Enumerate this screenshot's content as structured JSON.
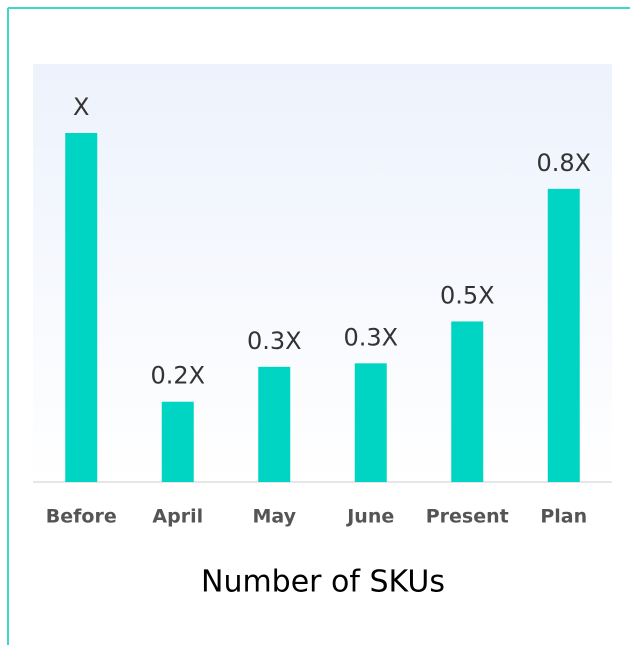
{
  "chart_data": {
    "type": "bar",
    "title": "Number of SKUs",
    "categories": [
      "Before",
      "April",
      "May",
      "June",
      "Present",
      "Plan"
    ],
    "values": [
      1,
      0.23,
      0.33,
      0.34,
      0.46,
      0.84
    ],
    "value_labels": [
      "X",
      "0.2X",
      "0.3X",
      "0.3X",
      "0.5X",
      "0.8X"
    ],
    "color": "#00d4c3"
  }
}
